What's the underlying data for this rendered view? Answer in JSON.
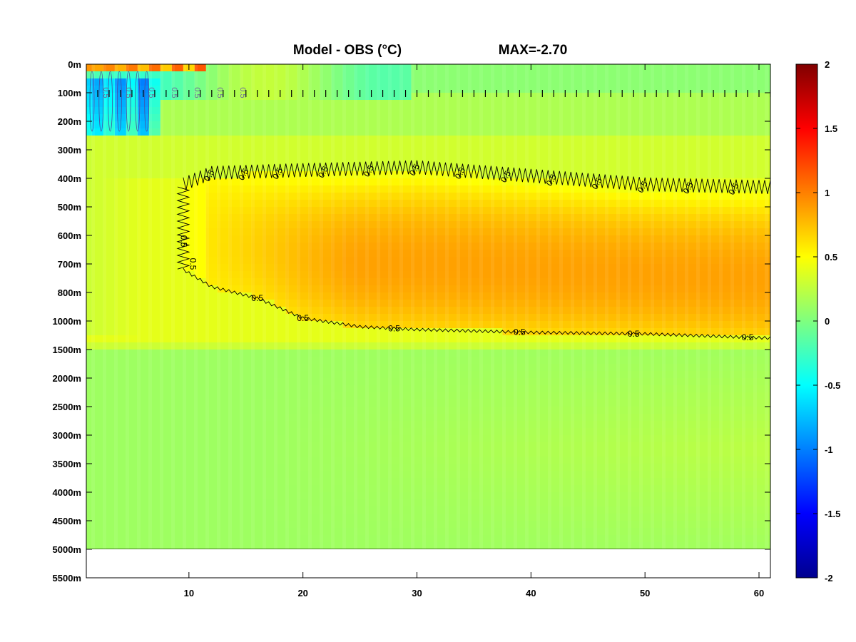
{
  "chart_data": {
    "type": "heatmap",
    "title": "Model - OBS (°C)",
    "annotation": "MAX=-2.70",
    "x_ticks": [
      10,
      20,
      30,
      40,
      50,
      60
    ],
    "xlim": [
      1,
      61
    ],
    "y_tick_labels": [
      "0m",
      "100m",
      "200m",
      "300m",
      "400m",
      "500m",
      "600m",
      "700m",
      "800m",
      "1000m",
      "1500m",
      "2000m",
      "2500m",
      "3000m",
      "3500m",
      "4000m",
      "4500m",
      "5000m",
      "5500m"
    ],
    "data_bottom_level_index": 17,
    "colorbar": {
      "colormap": "jet",
      "range": [
        -2,
        2
      ],
      "ticks": [
        2,
        1.5,
        1,
        0.5,
        0,
        -0.5,
        -1,
        -1.5,
        -2
      ]
    },
    "contour_level": 0.5,
    "contour_label": "0.5",
    "contour_0_5_outline": {
      "upper_edge": [
        {
          "x": 9.5,
          "level": 4.3
        },
        {
          "x": 12,
          "level": 3.9
        },
        {
          "x": 20,
          "level": 3.8
        },
        {
          "x": 30,
          "level": 3.7
        },
        {
          "x": 40,
          "level": 4.0
        },
        {
          "x": 50,
          "level": 4.3
        },
        {
          "x": 61,
          "level": 4.4
        }
      ],
      "lower_edge": [
        {
          "x": 9.5,
          "level": 7.2
        },
        {
          "x": 12,
          "level": 7.8
        },
        {
          "x": 16,
          "level": 8.2
        },
        {
          "x": 20,
          "level": 8.9
        },
        {
          "x": 25,
          "level": 9.2
        },
        {
          "x": 30,
          "level": 9.3
        },
        {
          "x": 40,
          "level": 9.4
        },
        {
          "x": 50,
          "level": 9.45
        },
        {
          "x": 61,
          "level": 9.6
        }
      ]
    },
    "field_regions": [
      {
        "description_value": "core",
        "x_range": [
          20,
          61
        ],
        "level_range": [
          5.5,
          9.0
        ],
        "value": 0.8
      },
      {
        "description_value": "band",
        "x_range": [
          12,
          61
        ],
        "level_range": [
          4.3,
          9.3
        ],
        "value": 0.6
      },
      {
        "description_value": "surface_negative",
        "x_range": [
          1,
          7
        ],
        "level_range": [
          0.5,
          2.4
        ],
        "value": -0.9
      },
      {
        "description_value": "deep",
        "x_range": [
          1,
          61
        ],
        "level_range": [
          10,
          17
        ],
        "value": 0.15
      }
    ]
  }
}
